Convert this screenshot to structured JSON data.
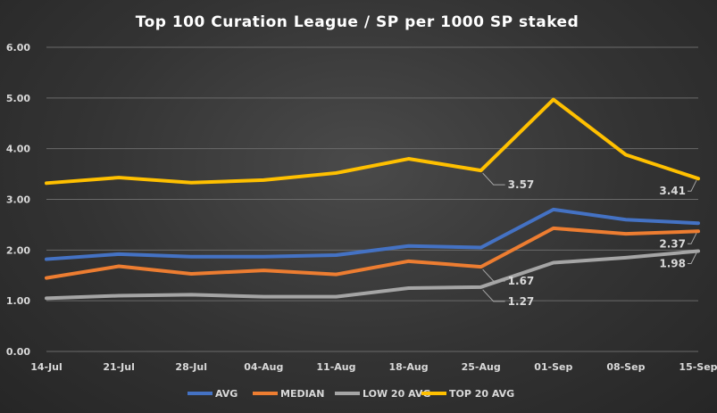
{
  "chart_data": {
    "type": "line",
    "title": "Top 100 Curation League / SP per 1000 SP staked",
    "xlabel": "",
    "ylabel": "",
    "ylim": [
      0,
      6
    ],
    "yticks": [
      "0.00",
      "1.00",
      "2.00",
      "3.00",
      "4.00",
      "5.00",
      "6.00"
    ],
    "categories": [
      "14-Jul",
      "21-Jul",
      "28-Jul",
      "04-Aug",
      "11-Aug",
      "18-Aug",
      "25-Aug",
      "01-Sep",
      "08-Sep",
      "15-Sep"
    ],
    "grid": true,
    "legend_position": "bottom",
    "series": [
      {
        "name": "AVG",
        "color": "#4472c4",
        "values": [
          1.82,
          1.92,
          1.87,
          1.87,
          1.9,
          2.08,
          2.05,
          2.8,
          2.6,
          2.53
        ]
      },
      {
        "name": "MEDIAN",
        "color": "#ed7d31",
        "values": [
          1.45,
          1.68,
          1.53,
          1.6,
          1.52,
          1.78,
          1.67,
          2.43,
          2.32,
          2.37
        ]
      },
      {
        "name": "LOW 20 AVG",
        "color": "#a5a5a5",
        "values": [
          1.05,
          1.1,
          1.12,
          1.08,
          1.08,
          1.25,
          1.27,
          1.75,
          1.85,
          1.98
        ]
      },
      {
        "name": "TOP 20 AVG",
        "color": "#ffc000",
        "values": [
          3.32,
          3.43,
          3.33,
          3.38,
          3.52,
          3.8,
          3.57,
          4.97,
          3.88,
          3.41
        ]
      }
    ],
    "annotations": [
      {
        "series": 3,
        "index": 6,
        "text": "3.57"
      },
      {
        "series": 3,
        "index": 9,
        "text": "3.41"
      },
      {
        "series": 1,
        "index": 9,
        "text": "2.37"
      },
      {
        "series": 1,
        "index": 6,
        "text": "1.67"
      },
      {
        "series": 2,
        "index": 9,
        "text": "1.98"
      },
      {
        "series": 2,
        "index": 6,
        "text": "1.27"
      }
    ]
  }
}
